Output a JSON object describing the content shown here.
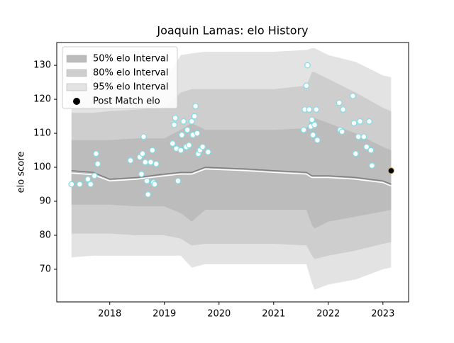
{
  "chart_data": {
    "type": "interval-history",
    "title": "Joaquin Lamas: elo History",
    "y_label": "elo score",
    "xlim": [
      2017.03,
      2023.47
    ],
    "xticks": [
      2018,
      2019,
      2020,
      2021,
      2022,
      2023
    ],
    "ylim": [
      60.4,
      136.7
    ],
    "yticks": [
      70,
      80,
      90,
      100,
      110,
      120,
      130
    ],
    "legend": "upper left",
    "x": [
      2017.3,
      2017.7,
      2018.0,
      2018.5,
      2019.0,
      2019.3,
      2019.5,
      2019.75,
      2020.5,
      2021.0,
      2021.6,
      2021.7,
      2021.75,
      2022.0,
      2022.5,
      2023.0,
      2023.15
    ],
    "intervals": [
      {
        "name": "50% elo Interval",
        "color": "#bcbcbc",
        "upper": [
          108,
          108,
          108,
          108.5,
          108.5,
          111,
          113,
          111,
          111,
          111,
          111.5,
          114.5,
          114.5,
          113,
          110,
          106,
          105
        ],
        "lower": [
          89,
          89,
          89,
          88.5,
          88.5,
          86.5,
          84,
          87.5,
          87.5,
          87.5,
          87.5,
          83,
          82,
          84,
          85.5,
          87,
          87.5
        ]
      },
      {
        "name": "80% elo Interval",
        "color": "#cecece",
        "upper": [
          116,
          116,
          116.5,
          117,
          117.5,
          122,
          123,
          123,
          123,
          123,
          124,
          128,
          128,
          126,
          122,
          117.5,
          116.5
        ],
        "lower": [
          80.5,
          80.5,
          80.5,
          80,
          80,
          79,
          77,
          77.5,
          77.5,
          77.5,
          77,
          74,
          73,
          74,
          75.5,
          77.5,
          78
        ]
      },
      {
        "name": "95% elo Interval",
        "color": "#e3e3e3",
        "upper": [
          123.5,
          123.5,
          124,
          124.5,
          125,
          133,
          133.5,
          134,
          134,
          134,
          134.5,
          135,
          135,
          133,
          131,
          127,
          126.5
        ],
        "lower": [
          73.5,
          74,
          74,
          74,
          74,
          74,
          70.5,
          71.5,
          71.5,
          71.5,
          71.5,
          66,
          64,
          65.5,
          67,
          70,
          70.5
        ]
      }
    ],
    "lines": [
      {
        "color": "#808080",
        "values": [
          99,
          98.5,
          96.5,
          97,
          98,
          98.5,
          98.5,
          100,
          99.5,
          99,
          98.5,
          97.5,
          97.5,
          97.5,
          97,
          96,
          95
        ]
      },
      {
        "color": "#ffffff",
        "values": [
          98.3,
          97.8,
          96,
          96.5,
          97.5,
          98,
          98,
          99.5,
          99,
          98.5,
          98,
          97,
          97,
          97,
          96.5,
          95.5,
          94.5
        ]
      }
    ],
    "points": {
      "color": "#ffffff",
      "edge_color": "#80dde6",
      "x": [
        2017.3,
        2017.45,
        2017.6,
        2017.65,
        2017.75,
        2017.78,
        2017.72,
        2018.38,
        2018.55,
        2018.6,
        2018.62,
        2018.58,
        2018.65,
        2018.68,
        2018.7,
        2018.75,
        2018.78,
        2018.8,
        2018.82,
        2018.85,
        2019.15,
        2019.18,
        2019.2,
        2019.22,
        2019.25,
        2019.3,
        2019.32,
        2019.35,
        2019.4,
        2019.42,
        2019.45,
        2019.5,
        2019.52,
        2019.55,
        2019.57,
        2019.6,
        2019.62,
        2019.65,
        2019.7,
        2019.8,
        2021.55,
        2021.57,
        2021.6,
        2021.62,
        2021.65,
        2021.68,
        2021.7,
        2021.72,
        2021.75,
        2021.78,
        2021.8,
        2022.2,
        2022.22,
        2022.25,
        2022.27,
        2022.45,
        2022.47,
        2022.5,
        2022.55,
        2022.58,
        2022.65,
        2022.7,
        2022.75,
        2022.78,
        2022.8
      ],
      "y": [
        95,
        95,
        96.5,
        95,
        104,
        101,
        97.5,
        102,
        103,
        104,
        109,
        98,
        101.5,
        96,
        92,
        101.5,
        105,
        95.5,
        95,
        101,
        107,
        112.5,
        114.5,
        105.5,
        96,
        105,
        109.5,
        113.5,
        106,
        111,
        106.5,
        113.5,
        109.5,
        115,
        118,
        110,
        104,
        105,
        106,
        104.5,
        111,
        117,
        124,
        130,
        117,
        112,
        114,
        109.5,
        112.5,
        117,
        108,
        119,
        111,
        110.5,
        117,
        121,
        113,
        104,
        109,
        113.5,
        109,
        106,
        113.5,
        105,
        100.5
      ]
    },
    "post_match": {
      "name": "Post Match elo",
      "color": "#000000",
      "edge_color": "#c9b458",
      "x": [
        2023.15
      ],
      "y": [
        99
      ]
    }
  }
}
